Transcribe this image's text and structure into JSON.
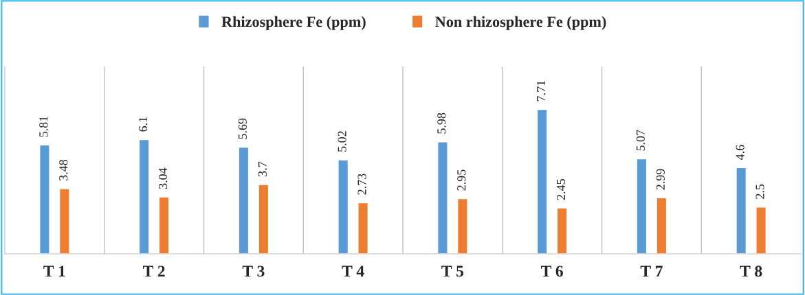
{
  "chart_data": {
    "type": "bar",
    "categories": [
      "T 1",
      "T 2",
      "T 3",
      "T 4",
      "T 5",
      "T 6",
      "T 7",
      "T 8"
    ],
    "series": [
      {
        "name": "Rhizosphere Fe (ppm)",
        "color": "#5b9bd5",
        "values": [
          5.81,
          6.1,
          5.69,
          5.02,
          5.98,
          7.71,
          5.07,
          4.6
        ]
      },
      {
        "name": "Non rhizosphere Fe (ppm)",
        "color": "#ed7d31",
        "values": [
          3.48,
          3.04,
          3.7,
          2.73,
          2.95,
          2.45,
          2.99,
          2.5
        ]
      }
    ],
    "ylim": [
      0,
      10
    ],
    "data_labels": true,
    "grid": "x",
    "legend": "top",
    "tick_labels": "x"
  }
}
